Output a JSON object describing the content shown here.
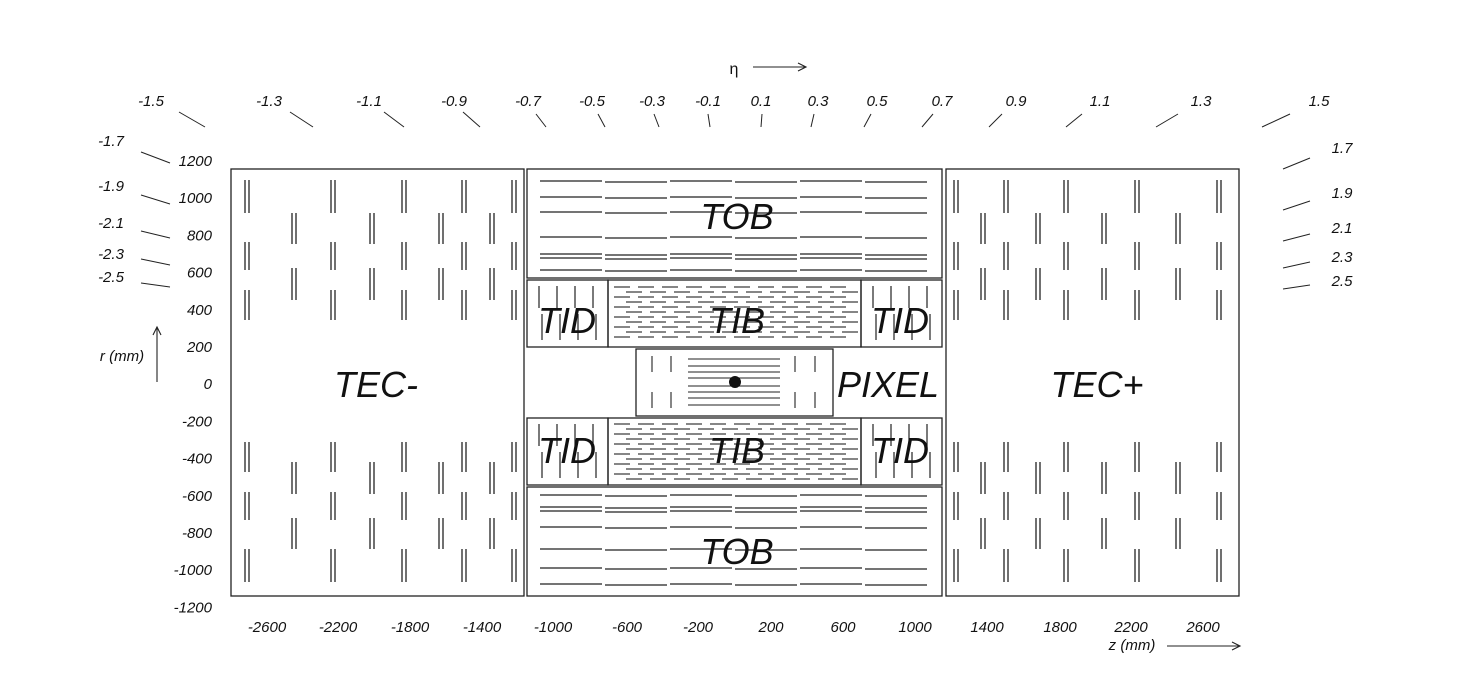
{
  "eta_label": "η",
  "eta_top_ticks": [
    "-1.5",
    "-1.3",
    "-1.1",
    "-0.9",
    "-0.7",
    "-0.5",
    "-0.3",
    "-0.1",
    "0.1",
    "0.3",
    "0.5",
    "0.7",
    "0.9",
    "1.1",
    "1.3",
    "1.5"
  ],
  "eta_left_ticks": [
    "-1.7",
    "-1.9",
    "-2.1",
    "-2.3",
    "-2.5"
  ],
  "eta_right_ticks": [
    "1.7",
    "1.9",
    "2.1",
    "2.3",
    "2.5"
  ],
  "r_ticks": [
    "1200",
    "1000",
    "800",
    "600",
    "400",
    "200",
    "0",
    "-200",
    "-400",
    "-600",
    "-800",
    "-1000",
    "-1200"
  ],
  "r_axis_label": "r (mm)",
  "z_ticks": [
    "-2600",
    "-2200",
    "-1800",
    "-1400",
    "-1000",
    "-600",
    "-200",
    "200",
    "600",
    "1000",
    "1400",
    "1800",
    "2200",
    "2600"
  ],
  "z_axis_label": "z (mm)",
  "regions": {
    "tec_minus": "TEC-",
    "tec_plus": "TEC+",
    "tob_top": "TOB",
    "tob_bottom": "TOB",
    "tib_top": "TIB",
    "tib_bottom": "TIB",
    "tid_top_left": "TID",
    "tid_top_right": "TID",
    "tid_bottom_left": "TID",
    "tid_bottom_right": "TID",
    "pixel": "PIXEL"
  }
}
